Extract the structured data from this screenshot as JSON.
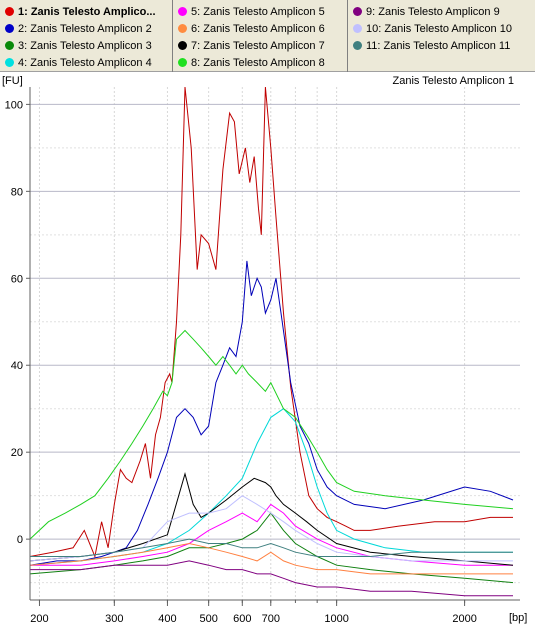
{
  "legend": {
    "columns": [
      [
        {
          "label": "1: Zanis Telesto Amplico...",
          "color": "#e00000",
          "selected": true
        },
        {
          "label": "2: Zanis Telesto Amplicon 2",
          "color": "#0000c8"
        },
        {
          "label": "3: Zanis Telesto Amplicon 3",
          "color": "#0a8a0a"
        },
        {
          "label": "4: Zanis Telesto Amplicon 4",
          "color": "#00e0e0"
        }
      ],
      [
        {
          "label": "5: Zanis Telesto Amplicon 5",
          "color": "#ff00ff"
        },
        {
          "label": "6: Zanis Telesto Amplicon 6",
          "color": "#ff8c40"
        },
        {
          "label": "7: Zanis Telesto Amplicon 7",
          "color": "#000000"
        },
        {
          "label": "8: Zanis Telesto Amplicon 8",
          "color": "#20e020"
        }
      ],
      [
        {
          "label": "9: Zanis Telesto Amplicon 9",
          "color": "#800080"
        },
        {
          "label": "10: Zanis Telesto Amplicon 10",
          "color": "#c0c0ff"
        },
        {
          "label": "11: Zanis Telesto Amplicon 11",
          "color": "#408080"
        }
      ]
    ]
  },
  "chart_data": {
    "type": "line",
    "title": "Zanis Telesto Amplicon 1",
    "xlabel": "[bp]",
    "ylabel": "[FU]",
    "x_scale": "log",
    "xlim": [
      190,
      2700
    ],
    "ylim": [
      -14,
      104
    ],
    "x_ticks": [
      200,
      300,
      400,
      500,
      600,
      700,
      1000,
      2000
    ],
    "y_ticks": [
      0,
      20,
      40,
      60,
      80,
      100
    ],
    "grid": true,
    "series": [
      {
        "name": "1: Zanis Telesto Amplicon 1",
        "color": "#c00000",
        "x": [
          190,
          215,
          240,
          255,
          270,
          280,
          290,
          300,
          310,
          320,
          330,
          345,
          355,
          365,
          375,
          385,
          395,
          405,
          410,
          420,
          430,
          440,
          455,
          470,
          480,
          500,
          520,
          540,
          560,
          575,
          590,
          610,
          625,
          640,
          655,
          665,
          680,
          700,
          720,
          750,
          780,
          820,
          860,
          900,
          950,
          1000,
          1050,
          1100,
          1200,
          1400,
          1700,
          2000,
          2300,
          2600
        ],
        "y": [
          -4,
          -3,
          -2,
          2,
          -4,
          4,
          -2,
          8,
          16,
          14,
          13,
          18,
          22,
          14,
          24,
          28,
          36,
          38,
          36,
          50,
          70,
          104,
          90,
          62,
          70,
          68,
          62,
          85,
          98,
          96,
          84,
          90,
          82,
          88,
          76,
          70,
          104,
          90,
          74,
          52,
          35,
          20,
          10,
          7,
          5,
          4,
          3,
          2,
          2,
          3,
          4,
          4,
          5,
          5
        ]
      },
      {
        "name": "2: Zanis Telesto Amplicon 2",
        "color": "#0000b8",
        "x": [
          190,
          220,
          250,
          280,
          300,
          320,
          340,
          360,
          380,
          400,
          420,
          440,
          460,
          480,
          500,
          520,
          540,
          560,
          580,
          600,
          615,
          630,
          650,
          665,
          680,
          700,
          720,
          740,
          780,
          820,
          860,
          900,
          950,
          1000,
          1100,
          1300,
          1600,
          2000,
          2300,
          2600
        ],
        "y": [
          -6,
          -5,
          -5,
          -4,
          -3,
          -2,
          2,
          8,
          14,
          20,
          28,
          30,
          28,
          24,
          26,
          36,
          40,
          44,
          42,
          50,
          64,
          56,
          60,
          58,
          52,
          55,
          60,
          52,
          36,
          26,
          22,
          16,
          12,
          10,
          8,
          7,
          9,
          12,
          11,
          9
        ]
      },
      {
        "name": "3: Zanis Telesto Amplicon 3",
        "color": "#108010",
        "x": [
          190,
          250,
          300,
          350,
          400,
          450,
          500,
          550,
          600,
          650,
          700,
          750,
          800,
          900,
          1000,
          1200,
          1500,
          2000,
          2600
        ],
        "y": [
          -8,
          -7,
          -6,
          -5,
          -4,
          -2,
          -2,
          -1,
          0,
          2,
          6,
          2,
          -1,
          -4,
          -6,
          -7,
          -8,
          -9,
          -10
        ]
      },
      {
        "name": "4: Zanis Telesto Amplicon 4",
        "color": "#00d8d8",
        "x": [
          190,
          250,
          300,
          350,
          400,
          450,
          500,
          550,
          600,
          650,
          700,
          750,
          800,
          850,
          900,
          950,
          1000,
          1100,
          1300,
          1600,
          2000,
          2600
        ],
        "y": [
          -6,
          -5,
          -4,
          -3,
          -1,
          2,
          6,
          10,
          14,
          22,
          28,
          30,
          27,
          20,
          12,
          6,
          2,
          0,
          -2,
          -3,
          -3,
          -3
        ]
      },
      {
        "name": "5: Zanis Telesto Amplicon 5",
        "color": "#ff00ff",
        "x": [
          190,
          250,
          300,
          350,
          400,
          450,
          500,
          550,
          600,
          650,
          700,
          750,
          800,
          900,
          1000,
          1200,
          1500,
          2000,
          2600
        ],
        "y": [
          -6,
          -6,
          -5,
          -4,
          -3,
          -1,
          2,
          4,
          6,
          4,
          8,
          6,
          3,
          0,
          -2,
          -4,
          -5,
          -6,
          -6
        ]
      },
      {
        "name": "6: Zanis Telesto Amplicon 6",
        "color": "#ff8040",
        "x": [
          190,
          250,
          300,
          350,
          400,
          450,
          500,
          550,
          600,
          650,
          700,
          750,
          800,
          900,
          1000,
          1200,
          1500,
          2000,
          2600
        ],
        "y": [
          -6,
          -5,
          -4,
          -3,
          -2,
          -1,
          -2,
          -3,
          -4,
          -5,
          -3,
          -5,
          -6,
          -7,
          -7,
          -8,
          -8,
          -8,
          -8
        ]
      },
      {
        "name": "7: Zanis Telesto Amplicon 7",
        "color": "#000000",
        "x": [
          190,
          250,
          300,
          350,
          400,
          440,
          460,
          480,
          500,
          550,
          600,
          640,
          680,
          700,
          720,
          750,
          800,
          850,
          900,
          1000,
          1200,
          1500,
          2000,
          2600
        ],
        "y": [
          -5,
          -4,
          -3,
          -1,
          1,
          15,
          8,
          5,
          6,
          9,
          12,
          14,
          13,
          12,
          10,
          8,
          6,
          4,
          2,
          -1,
          -3,
          -4,
          -5,
          -6
        ]
      },
      {
        "name": "8: Zanis Telesto Amplicon 8",
        "color": "#20d020",
        "x": [
          190,
          210,
          230,
          250,
          270,
          290,
          310,
          330,
          350,
          370,
          390,
          400,
          410,
          420,
          440,
          460,
          480,
          500,
          520,
          540,
          560,
          580,
          600,
          620,
          650,
          680,
          700,
          750,
          800,
          850,
          900,
          950,
          1000,
          1100,
          1300,
          1600,
          2000,
          2600
        ],
        "y": [
          0,
          4,
          6,
          8,
          10,
          14,
          18,
          22,
          26,
          30,
          34,
          33,
          36,
          46,
          48,
          46,
          44,
          42,
          40,
          42,
          40,
          38,
          40,
          38,
          36,
          34,
          36,
          30,
          28,
          24,
          20,
          16,
          13,
          11,
          10,
          9,
          8,
          7
        ]
      },
      {
        "name": "9: Zanis Telesto Amplicon 9",
        "color": "#800080",
        "x": [
          190,
          250,
          300,
          350,
          400,
          450,
          500,
          550,
          600,
          650,
          700,
          750,
          800,
          900,
          1000,
          1200,
          1500,
          2000,
          2600
        ],
        "y": [
          -7,
          -7,
          -6,
          -6,
          -6,
          -5,
          -6,
          -7,
          -7,
          -8,
          -8,
          -9,
          -10,
          -11,
          -11,
          -12,
          -12,
          -13,
          -13
        ]
      },
      {
        "name": "10: Zanis Telesto Amplicon 10",
        "color": "#c0c0ff",
        "x": [
          190,
          250,
          300,
          350,
          400,
          450,
          500,
          550,
          600,
          650,
          700,
          750,
          800,
          900,
          1000,
          1200,
          1500,
          2000,
          2600
        ],
        "y": [
          -5,
          -4,
          -3,
          -2,
          4,
          6,
          6,
          7,
          10,
          8,
          6,
          4,
          2,
          -1,
          -3,
          -4,
          -5,
          -5,
          -5
        ]
      },
      {
        "name": "11: Zanis Telesto Amplicon 11",
        "color": "#408080",
        "x": [
          190,
          250,
          300,
          350,
          400,
          450,
          500,
          550,
          600,
          650,
          700,
          750,
          800,
          900,
          1000,
          1200,
          1500,
          2000,
          2600
        ],
        "y": [
          -4,
          -4,
          -3,
          -2,
          -1,
          0,
          -1,
          -1,
          -2,
          -2,
          -1,
          -2,
          -3,
          -4,
          -4,
          -4,
          -3,
          -3,
          -3
        ]
      }
    ]
  }
}
